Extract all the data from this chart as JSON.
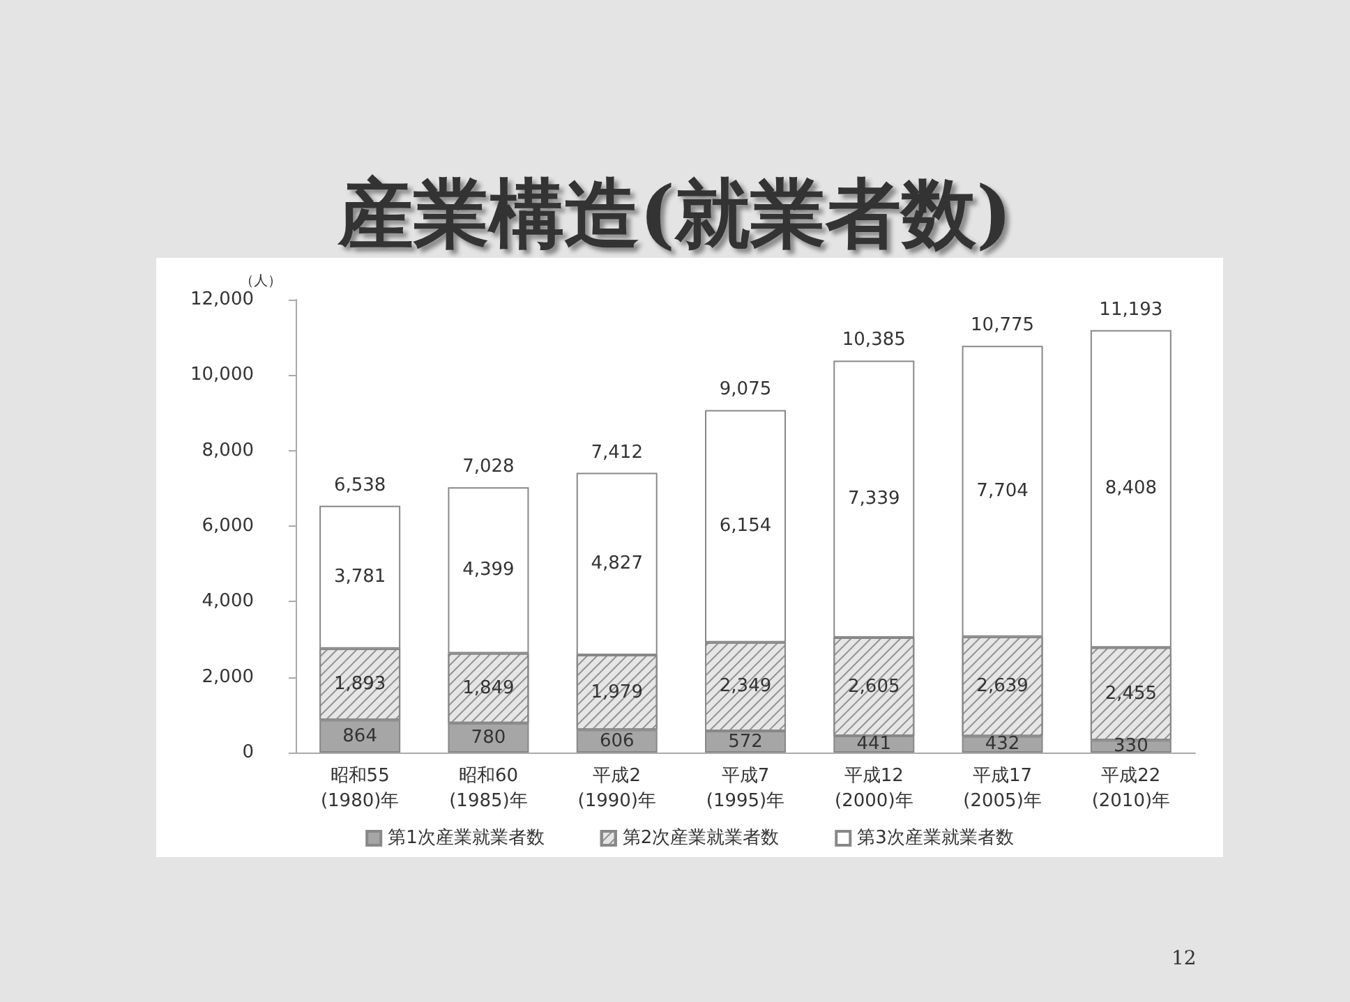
{
  "chart_data": {
    "type": "bar",
    "title": "産業構造(就業者数)",
    "ylabel": "（人）",
    "categories": [
      "昭和55\n(1980)年",
      "昭和60\n(1985)年",
      "平成2\n(1990)年",
      "平成7\n(1995)年",
      "平成12\n(2000)年",
      "平成17\n(2005)年",
      "平成22\n(2010)年"
    ],
    "series": [
      {
        "name": "第1次産業就業者数",
        "color": "#a6a6a6",
        "values": [
          864,
          780,
          606,
          572,
          441,
          432,
          330
        ],
        "value_labels": [
          "864",
          "780",
          "606",
          "572",
          "441",
          "432",
          "330"
        ]
      },
      {
        "name": "第2次産業就業者数",
        "color": "#e6e6e6",
        "values": [
          1893,
          1849,
          1979,
          2349,
          2605,
          2639,
          2455
        ],
        "value_labels": [
          "1,893",
          "1,849",
          "1,979",
          "2,349",
          "2,605",
          "2,639",
          "2,455"
        ]
      },
      {
        "name": "第3次産業就業者数",
        "color": "#ffffff",
        "values": [
          3781,
          4399,
          4827,
          6154,
          7339,
          7704,
          8408
        ],
        "value_labels": [
          "3,781",
          "4,399",
          "4,827",
          "6,154",
          "7,339",
          "7,704",
          "8,408"
        ]
      }
    ],
    "stacked": true,
    "totals": [
      "6,538",
      "7,028",
      "7,412",
      "9,075",
      "10,385",
      "10,775",
      "11,193"
    ],
    "ylim": [
      0,
      12000
    ],
    "yticks": [
      0,
      {
        "value": 2000,
        "label": "2,000"
      },
      {
        "value": 4000,
        "label": "4,000"
      },
      {
        "value": 6000,
        "label": "6,000"
      },
      {
        "value": 8000,
        "label": "8,000"
      },
      {
        "value": 10000,
        "label": "10,000"
      },
      {
        "value": 12000,
        "label": "12,000"
      }
    ],
    "grid": false,
    "legend": "bottom",
    "annotations": [
      "12"
    ]
  }
}
